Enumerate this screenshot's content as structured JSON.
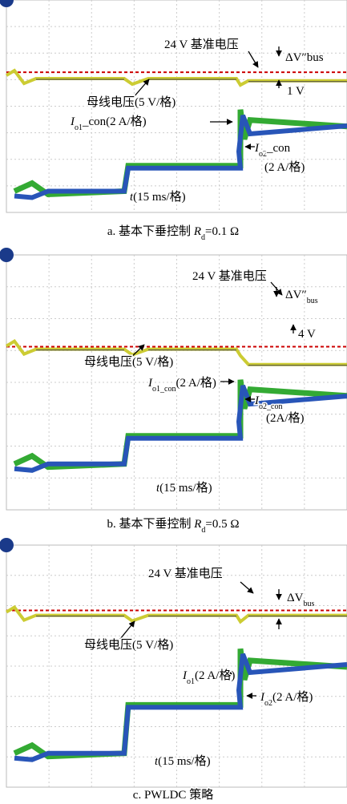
{
  "figure": {
    "panels": [
      {
        "annotations": [
          {
            "parts": [
              {
                "text": "24 V 基准电压"
              }
            ]
          },
          {
            "parts": [
              {
                "text": "ΔV″bus"
              }
            ]
          },
          {
            "parts": [
              {
                "text": "1 V"
              }
            ]
          },
          {
            "parts": [
              {
                "text": "母线电压(5 V/格)"
              }
            ]
          },
          {
            "parts": [
              {
                "text": "I",
                "style": "italic"
              },
              {
                "text": "o1",
                "style": "sub"
              },
              {
                "text": "_con(2 A/格)"
              }
            ]
          },
          {
            "parts": [
              {
                "text": "I",
                "style": "italic"
              },
              {
                "text": "o2",
                "style": "sub"
              },
              {
                "text": "_con"
              }
            ]
          },
          {
            "parts": [
              {
                "text": "(2 A/格)"
              }
            ]
          },
          {
            "parts": [
              {
                "text": "t",
                "style": "italic"
              },
              {
                "text": "(15 ms/格)"
              }
            ]
          }
        ],
        "caption": {
          "parts": [
            {
              "text": "a. 基本下垂控制 "
            },
            {
              "text": "R",
              "style": "italic"
            },
            {
              "text": "d",
              "style": "sub"
            },
            {
              "text": "=0.1 Ω"
            }
          ]
        }
      },
      {
        "annotations": [
          {
            "parts": [
              {
                "text": "24 V 基准电压"
              }
            ]
          },
          {
            "parts": [
              {
                "text": "ΔV″"
              },
              {
                "text": "bus",
                "style": "sub"
              }
            ]
          },
          {
            "parts": [
              {
                "text": "4 V"
              }
            ]
          },
          {
            "parts": [
              {
                "text": "母线电压(5 V/格)"
              }
            ]
          },
          {
            "parts": [
              {
                "text": "I",
                "style": "italic"
              },
              {
                "text": "o1_con",
                "style": "sub"
              },
              {
                "text": "(2 A/格)"
              }
            ]
          },
          {
            "parts": [
              {
                "text": "I",
                "style": "italic"
              },
              {
                "text": "o2_con",
                "style": "sub"
              }
            ]
          },
          {
            "parts": [
              {
                "text": "(2A/格)"
              }
            ]
          },
          {
            "parts": [
              {
                "text": "t",
                "style": "italic"
              },
              {
                "text": "(15 ms/格)"
              }
            ]
          }
        ],
        "caption": {
          "parts": [
            {
              "text": "b. 基本下垂控制 "
            },
            {
              "text": "R",
              "style": "italic"
            },
            {
              "text": "d",
              "style": "sub"
            },
            {
              "text": "=0.5 Ω"
            }
          ]
        }
      },
      {
        "annotations": [
          {
            "parts": [
              {
                "text": "24 V 基准电压"
              }
            ]
          },
          {
            "parts": [
              {
                "text": "ΔV"
              },
              {
                "text": "bus",
                "style": "sub"
              }
            ]
          },
          {
            "parts": [
              {
                "text": "母线电压(5 V/格)"
              }
            ]
          },
          {
            "parts": [
              {
                "text": "I",
                "style": "italic"
              },
              {
                "text": "o1",
                "style": "sub"
              },
              {
                "text": "(2 A/格)"
              }
            ]
          },
          {
            "parts": [
              {
                "text": "I",
                "style": "italic"
              },
              {
                "text": "o2",
                "style": "sub"
              },
              {
                "text": "(2 A/格)"
              }
            ]
          },
          {
            "parts": [
              {
                "text": "t",
                "style": "italic"
              },
              {
                "text": "(15 ms/格)"
              }
            ]
          }
        ],
        "caption": {
          "parts": [
            {
              "text": "c. PWLDC 策略"
            }
          ]
        }
      }
    ]
  }
}
